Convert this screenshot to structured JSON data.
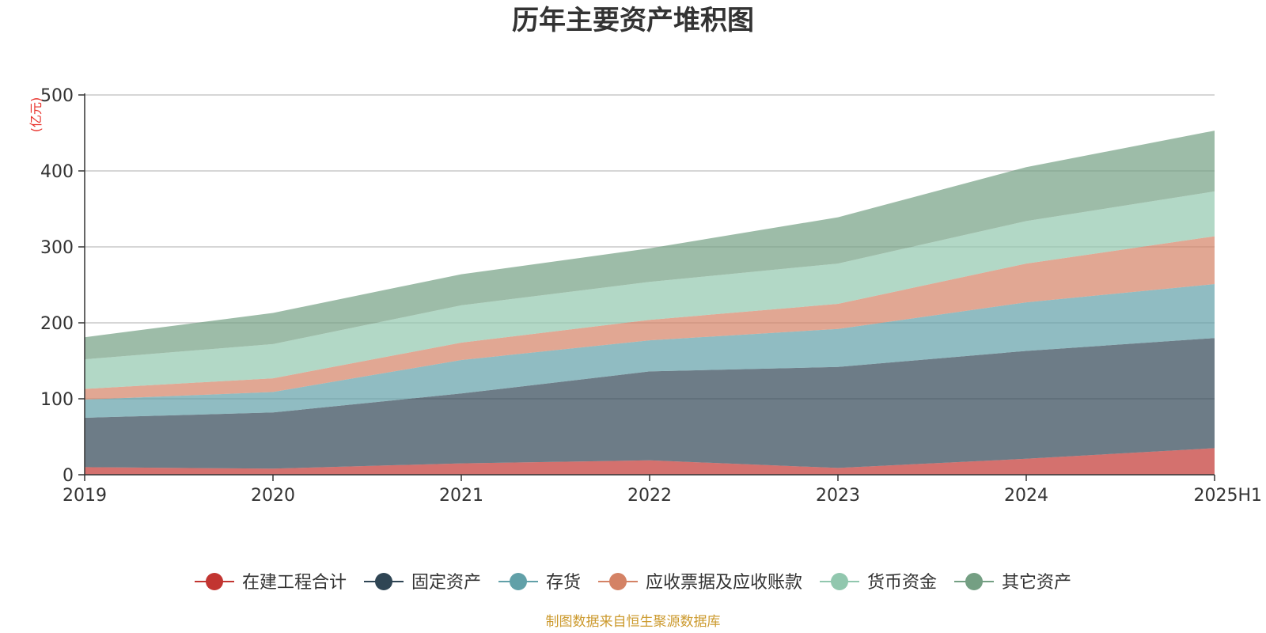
{
  "chart_data": {
    "type": "area",
    "stacked": true,
    "title": "历年主要资产堆积图",
    "unit_label": "(亿元)",
    "x": [
      "2019",
      "2020",
      "2021",
      "2022",
      "2023",
      "2024",
      "2025H1"
    ],
    "ylim": [
      0,
      500
    ],
    "yticks": [
      0,
      100,
      200,
      300,
      400,
      500
    ],
    "grid": true,
    "legend_position": "bottom",
    "series": [
      {
        "name": "在建工程合计",
        "color": "#c23531",
        "values": [
          10,
          8,
          15,
          19,
          9,
          21,
          35
        ]
      },
      {
        "name": "固定资产",
        "color": "#2f4554",
        "values": [
          65,
          74,
          92,
          117,
          133,
          142,
          145
        ]
      },
      {
        "name": "存货",
        "color": "#61a0a8",
        "values": [
          24,
          27,
          44,
          41,
          50,
          64,
          71
        ]
      },
      {
        "name": "应收票据及应收账款",
        "color": "#d48265",
        "values": [
          14,
          18,
          23,
          27,
          33,
          51,
          63
        ]
      },
      {
        "name": "货币资金",
        "color": "#91c7ae",
        "values": [
          39,
          45,
          49,
          50,
          53,
          56,
          59
        ]
      },
      {
        "name": "其它资产",
        "color": "#749f83",
        "values": [
          29,
          41,
          41,
          44,
          61,
          71,
          80
        ]
      }
    ],
    "source": "制图数据来自恒生聚源数据库"
  }
}
